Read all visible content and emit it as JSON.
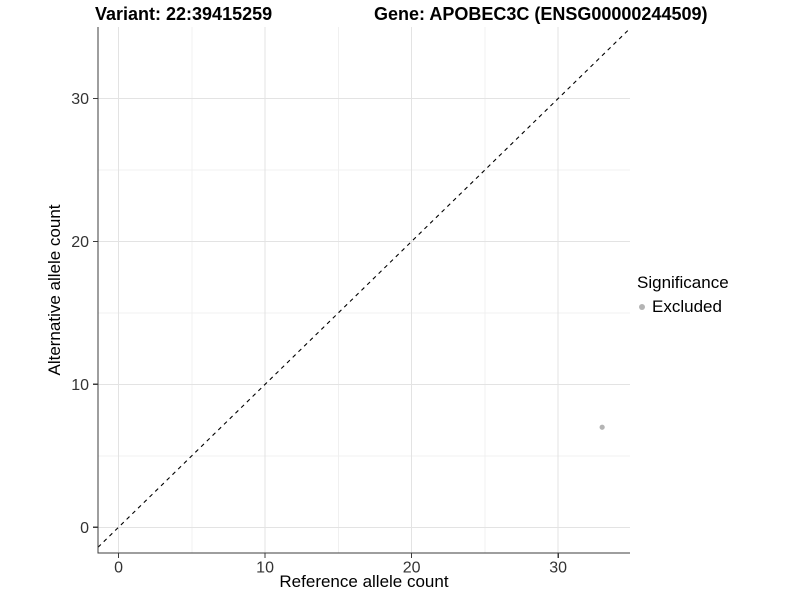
{
  "colors": {
    "background": "#ffffff",
    "axis_line": "#3c3c3c",
    "tick_label": "#333333",
    "grid_major": "#e3e3e3",
    "grid_minor": "#f0f0f0",
    "point": "#b4b4b4",
    "reference_line": "#000000"
  },
  "chart_data": {
    "type": "scatter",
    "titles": {
      "left": "Variant: 22:39415259",
      "right": "Gene: APOBEC3C (ENSG00000244509)"
    },
    "xlabel": "Reference allele count",
    "ylabel": "Alternative allele count",
    "xlim": [
      -1.4,
      34.9
    ],
    "ylim": [
      -1.8,
      35.0
    ],
    "x_ticks": [
      0,
      10,
      20,
      30
    ],
    "y_ticks": [
      0,
      10,
      20,
      30
    ],
    "x_minor_ticks": [
      5,
      15,
      25
    ],
    "y_minor_ticks": [
      5,
      15,
      25
    ],
    "grid": true,
    "reference_line": {
      "type": "identity",
      "equation": "y = x",
      "style": "dashed",
      "from": -1.4,
      "to": 34.9
    },
    "series": [
      {
        "name": "Excluded",
        "color": "#b4b4b4",
        "points": [
          [
            33,
            7
          ]
        ]
      }
    ],
    "legend": {
      "title": "Significance",
      "position": "right",
      "items": [
        {
          "label": "Excluded",
          "color": "#b4b4b4"
        }
      ]
    }
  }
}
